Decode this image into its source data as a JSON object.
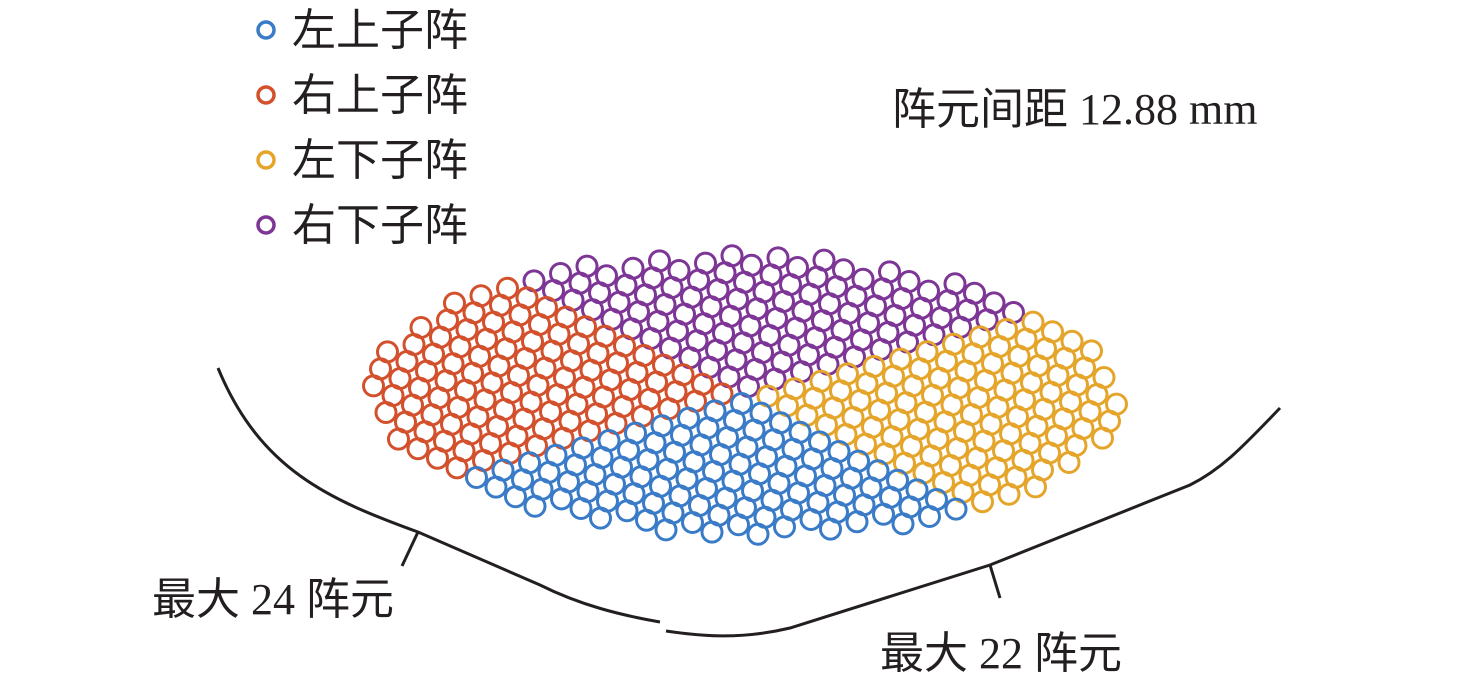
{
  "legend": [
    {
      "label": "左上子阵",
      "color": "#3a7bc8"
    },
    {
      "label": "右上子阵",
      "color": "#d3502c"
    },
    {
      "label": "左下子阵",
      "color": "#e4a52a"
    },
    {
      "label": "右下子阵",
      "color": "#7d3596"
    }
  ],
  "annotations": {
    "spacing": "阵元间距 12.88 mm",
    "left_count": "最大 24 阵元",
    "right_count": "最大 22 阵元"
  }
}
